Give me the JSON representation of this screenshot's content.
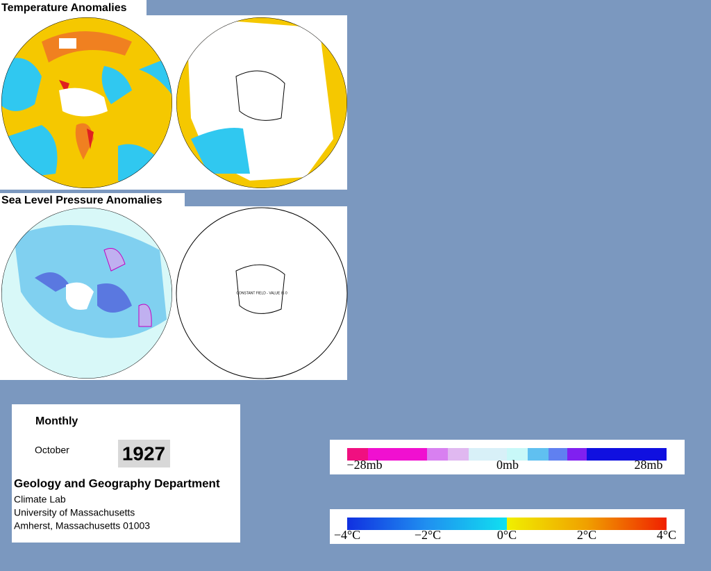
{
  "temperature": {
    "title": "Temperature Anomalies"
  },
  "pressure": {
    "title": "Sea Level Pressure Anomalies",
    "map_note": "CONSTANT FIELD - VALUE IS 0"
  },
  "info": {
    "period": "Monthly",
    "month": "October",
    "year": "1927",
    "department": "Geology and Geography Department",
    "lab": "Climate Lab",
    "university": "University of Massachusetts",
    "address": "Amherst, Massachusetts 01003"
  },
  "pressure_scale": {
    "labels": [
      "−28mb",
      "0mb",
      "28mb"
    ]
  },
  "temperature_scale": {
    "labels": [
      "−4°C",
      "−2°C",
      "0°C",
      "2°C",
      "4°C"
    ]
  }
}
